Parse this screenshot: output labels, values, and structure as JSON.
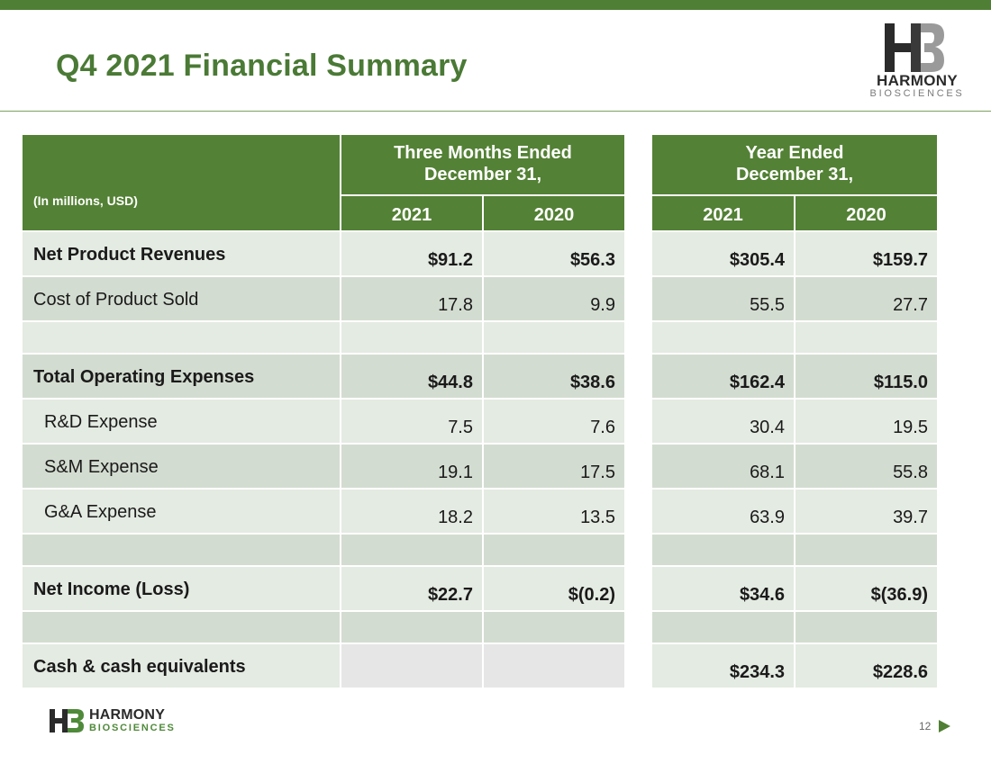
{
  "slide": {
    "title": "Q4 2021 Financial Summary",
    "page_number": "12"
  },
  "brand": {
    "name": "HARMONY",
    "subname": "BIOSCIENCES",
    "color": "#538135"
  },
  "table": {
    "units_label": "(In millions, USD)",
    "group_headers": [
      "Three Months Ended\nDecember 31,",
      "Year Ended\nDecember 31,"
    ],
    "year_headers": [
      "2021",
      "2020",
      "2021",
      "2020"
    ],
    "rows": [
      {
        "label": "Net Product Revenues",
        "values": [
          "$91.2",
          "$56.3",
          "$305.4",
          "$159.7"
        ]
      },
      {
        "label": "Cost of Product Sold",
        "values": [
          "17.8",
          "9.9",
          "55.5",
          "27.7"
        ]
      },
      {
        "label": "",
        "values": [
          "",
          "",
          "",
          ""
        ]
      },
      {
        "label": "Total Operating Expenses",
        "values": [
          "$44.8",
          "$38.6",
          "$162.4",
          "$115.0"
        ]
      },
      {
        "label": "R&D Expense",
        "values": [
          "7.5",
          "7.6",
          "30.4",
          "19.5"
        ]
      },
      {
        "label": "S&M Expense",
        "values": [
          "19.1",
          "17.5",
          "68.1",
          "55.8"
        ]
      },
      {
        "label": "G&A Expense",
        "values": [
          "18.2",
          "13.5",
          "63.9",
          "39.7"
        ]
      },
      {
        "label": "",
        "values": [
          "",
          "",
          "",
          ""
        ]
      },
      {
        "label": "Net Income (Loss)",
        "values": [
          "$22.7",
          "$(0.2)",
          "$34.6",
          "$(36.9)"
        ]
      },
      {
        "label": "",
        "values": [
          "",
          "",
          "",
          ""
        ]
      },
      {
        "label": "Cash & cash equivalents",
        "values": [
          "",
          "",
          "$234.3",
          "$228.6"
        ]
      }
    ]
  }
}
